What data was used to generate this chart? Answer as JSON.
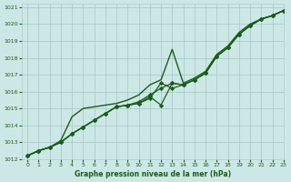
{
  "title": "Graphe pression niveau de la mer (hPa)",
  "bg_color": "#cce8e6",
  "grid_color": "#aaccca",
  "line_color": "#1a5c1a",
  "xlim": [
    -0.5,
    23
  ],
  "ylim": [
    1012,
    1021.2
  ],
  "xticks": [
    0,
    1,
    2,
    3,
    4,
    5,
    6,
    7,
    8,
    9,
    10,
    11,
    12,
    13,
    14,
    15,
    16,
    17,
    18,
    19,
    20,
    21,
    22,
    23
  ],
  "yticks": [
    1012,
    1013,
    1014,
    1015,
    1016,
    1017,
    1018,
    1019,
    1020,
    1021
  ],
  "series": [
    {
      "x": [
        0,
        1,
        2,
        3,
        4,
        5,
        6,
        7,
        8,
        9,
        10,
        11,
        12,
        13,
        14,
        15,
        16,
        17,
        18,
        19,
        20,
        21,
        22,
        23
      ],
      "y": [
        1012.2,
        1012.5,
        1012.7,
        1013.0,
        1013.5,
        1013.9,
        1014.3,
        1014.7,
        1015.1,
        1015.2,
        1015.3,
        1015.6,
        1016.5,
        1016.2,
        1016.4,
        1016.7,
        1017.1,
        1018.1,
        1018.6,
        1019.4,
        1019.9,
        1020.3,
        1020.5,
        1020.8
      ],
      "marker": true,
      "lw": 0.9
    },
    {
      "x": [
        0,
        1,
        2,
        3,
        4,
        5,
        6,
        7,
        8,
        9,
        10,
        11,
        12,
        13,
        14,
        15,
        16,
        17,
        18,
        19,
        20,
        21,
        22,
        23
      ],
      "y": [
        1012.2,
        1012.5,
        1012.7,
        1013.0,
        1013.5,
        1013.9,
        1014.3,
        1014.7,
        1015.1,
        1015.2,
        1015.3,
        1015.7,
        1015.2,
        1016.5,
        1016.4,
        1016.7,
        1017.1,
        1018.1,
        1018.6,
        1019.4,
        1019.9,
        1020.3,
        1020.5,
        1020.8
      ],
      "marker": true,
      "lw": 0.9
    },
    {
      "x": [
        0,
        1,
        2,
        3,
        4,
        5,
        6,
        7,
        8,
        9,
        10,
        11,
        12,
        13,
        14,
        15,
        16,
        17,
        18,
        19,
        20,
        21,
        22,
        23
      ],
      "y": [
        1012.2,
        1012.5,
        1012.7,
        1013.0,
        1013.5,
        1013.9,
        1014.3,
        1014.7,
        1015.1,
        1015.2,
        1015.4,
        1015.8,
        1016.2,
        1016.5,
        1016.4,
        1016.7,
        1017.1,
        1018.1,
        1018.6,
        1019.4,
        1019.9,
        1020.3,
        1020.5,
        1020.8
      ],
      "marker": true,
      "lw": 0.9
    },
    {
      "x": [
        0,
        1,
        2,
        3,
        4,
        5,
        6,
        7,
        8,
        9,
        10,
        11,
        12,
        13,
        14,
        15,
        16,
        17,
        18,
        19,
        20,
        21,
        22,
        23
      ],
      "y": [
        1012.2,
        1012.5,
        1012.7,
        1013.1,
        1014.5,
        1015.0,
        1015.1,
        1015.2,
        1015.3,
        1015.5,
        1015.8,
        1016.4,
        1016.7,
        1018.5,
        1016.5,
        1016.8,
        1017.2,
        1018.2,
        1018.7,
        1019.5,
        1020.0,
        1020.3,
        1020.5,
        1020.8
      ],
      "marker": false,
      "lw": 1.0
    }
  ]
}
